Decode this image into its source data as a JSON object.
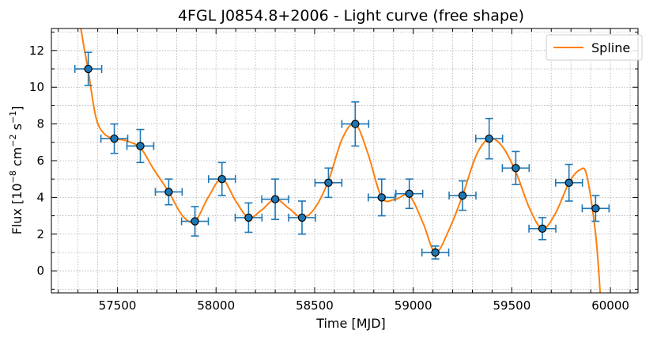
{
  "chart_data": {
    "type": "scatter",
    "title": "4FGL J0854.8+2006 - Light curve (free shape)",
    "xlabel": "Time [MJD]",
    "ylabel": {
      "prefix": "Flux [10",
      "exp1": "−8",
      "mid": " cm",
      "exp2": "−2",
      "mid2": " s",
      "exp3": "−1",
      "suffix": "]"
    },
    "xlim": [
      57165,
      60140
    ],
    "ylim": [
      -1.2,
      13.2
    ],
    "xticks": [
      57500,
      58000,
      58500,
      59000,
      59500,
      60000
    ],
    "yticks": [
      0,
      2,
      4,
      6,
      8,
      10,
      12
    ],
    "grid": true,
    "legend_position": "top-right",
    "marker_color": "#1f77b4",
    "spline_color": "#ff7f0e",
    "series": [
      {
        "kind": "points",
        "x": [
          57352,
          57484,
          57616,
          57760,
          57893,
          58030,
          58165,
          58300,
          58436,
          58570,
          58706,
          58840,
          58980,
          59112,
          59250,
          59385,
          59520,
          59655,
          59790,
          59925
        ],
        "y": [
          11.0,
          7.2,
          6.8,
          4.3,
          2.7,
          5.0,
          2.9,
          3.9,
          2.9,
          4.8,
          8.0,
          4.0,
          4.2,
          1.0,
          4.1,
          7.2,
          5.6,
          2.3,
          4.8,
          3.4
        ],
        "xerr": 68,
        "yerr": [
          0.9,
          0.8,
          0.9,
          0.7,
          0.8,
          0.9,
          0.8,
          1.1,
          0.9,
          0.8,
          1.2,
          1.0,
          0.8,
          0.35,
          0.8,
          1.1,
          0.9,
          0.6,
          1.0,
          0.7
        ]
      },
      {
        "kind": "line",
        "name": "Spline",
        "x": [
          57310,
          57330,
          57352,
          57390,
          57430,
          57484,
          57540,
          57616,
          57680,
          57760,
          57830,
          57893,
          57960,
          58030,
          58100,
          58165,
          58230,
          58300,
          58370,
          58436,
          58500,
          58570,
          58640,
          58706,
          58770,
          58840,
          58910,
          58980,
          59050,
          59112,
          59180,
          59250,
          59320,
          59385,
          59450,
          59520,
          59590,
          59655,
          59720,
          59790,
          59845,
          59880,
          59925,
          59950
        ],
        "y": [
          13.5,
          12.2,
          10.9,
          8.4,
          7.5,
          7.2,
          7.1,
          6.7,
          5.6,
          4.3,
          3.0,
          2.7,
          4.0,
          5.0,
          3.8,
          2.9,
          3.3,
          3.9,
          3.4,
          2.9,
          3.4,
          4.9,
          7.2,
          8.0,
          6.4,
          4.0,
          3.9,
          4.1,
          2.6,
          1.0,
          2.2,
          4.1,
          6.3,
          7.2,
          6.8,
          5.4,
          3.4,
          2.3,
          3.1,
          4.8,
          5.5,
          5.2,
          2.0,
          -1.5
        ]
      }
    ]
  }
}
